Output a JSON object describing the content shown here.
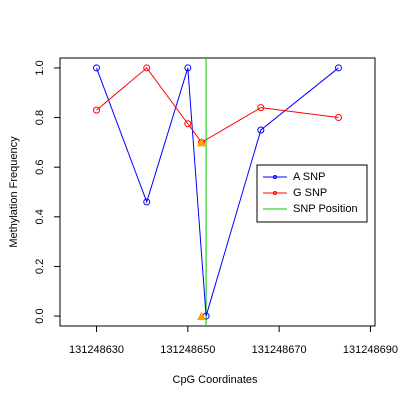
{
  "chart_data": {
    "type": "line",
    "xlabel": "CpG Coordinates",
    "ylabel": "Methylation Frequency",
    "xlim": [
      131248622,
      131248691
    ],
    "ylim": [
      -0.04,
      1.04
    ],
    "xticks": [
      131248630,
      131248650,
      131248670,
      131248690
    ],
    "yticks": [
      {
        "value": 0,
        "label": "0.0"
      },
      0.2,
      0.4,
      0.6,
      0.8,
      {
        "value": 1,
        "label": "1.0"
      }
    ],
    "series": [
      {
        "name": "A SNP",
        "color": "#0000ff",
        "x": [
          131248630,
          131248641,
          131248650,
          131248654,
          131248666,
          131248683
        ],
        "values": [
          1.0,
          0.46,
          1.0,
          0.0,
          0.75,
          1.0
        ]
      },
      {
        "name": "G SNP",
        "color": "#ff0000",
        "x": [
          131248630,
          131248641,
          131248650,
          131248653,
          131248666,
          131248683
        ],
        "values": [
          0.83,
          1.0,
          0.775,
          0.7,
          0.84,
          0.8
        ]
      }
    ],
    "snp_markers": {
      "color": "#ffa500",
      "x": [
        131248653,
        131248653
      ],
      "values": [
        0.7,
        0.0
      ]
    },
    "snp_position": {
      "name": "SNP Position",
      "color": "#00cc00",
      "x": 131248654
    },
    "legend": "right"
  }
}
